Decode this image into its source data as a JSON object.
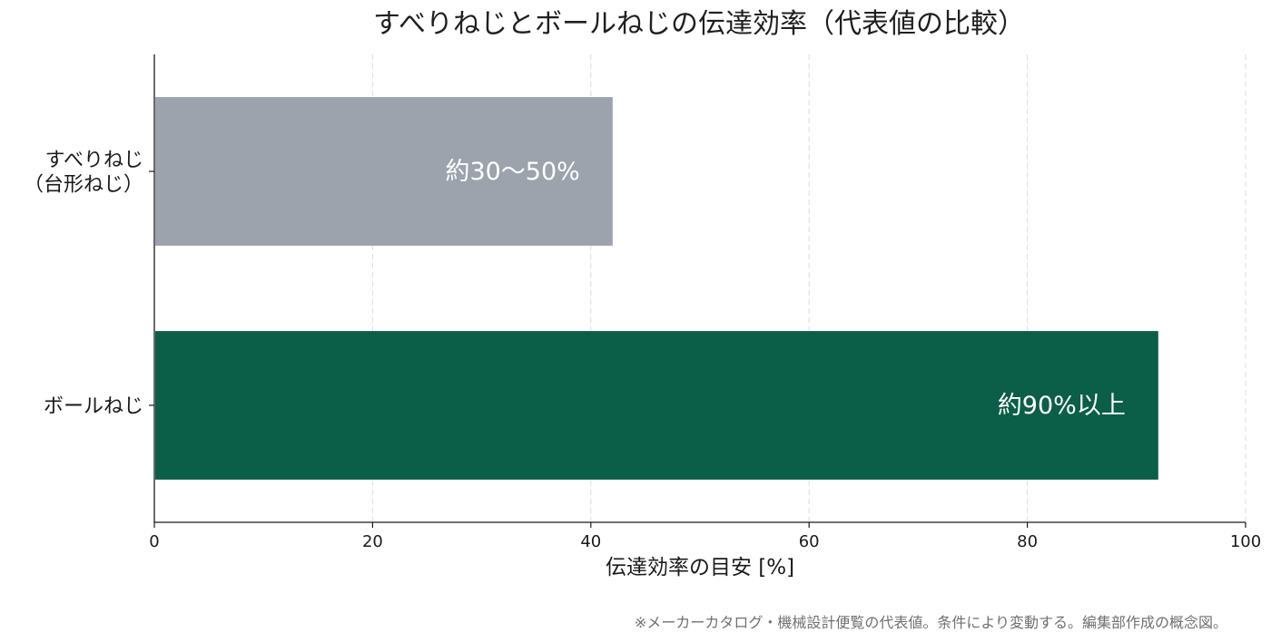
{
  "chart_data": {
    "type": "bar",
    "orientation": "horizontal",
    "title": "すべりねじとボールねじの伝達効率（代表値の比較）",
    "categories": [
      [
        "すべりねじ",
        "（台形ねじ）"
      ],
      [
        "ボールねじ"
      ]
    ],
    "values": [
      42,
      92
    ],
    "value_labels": [
      "約30〜50%",
      "約90%以上"
    ],
    "colors": [
      "#9ca3ad",
      "#0b5e47"
    ],
    "xlabel": "伝達効率の目安 [%]",
    "ylabel": "",
    "xlim": [
      0,
      100
    ],
    "xticks": [
      0,
      20,
      40,
      60,
      80,
      100
    ],
    "grid": {
      "x": true,
      "style": "dashed"
    },
    "legend": "none",
    "footnote": "※メーカーカタログ・機械設計便覧の代表値。条件により変動する。編集部作成の概念図。"
  }
}
